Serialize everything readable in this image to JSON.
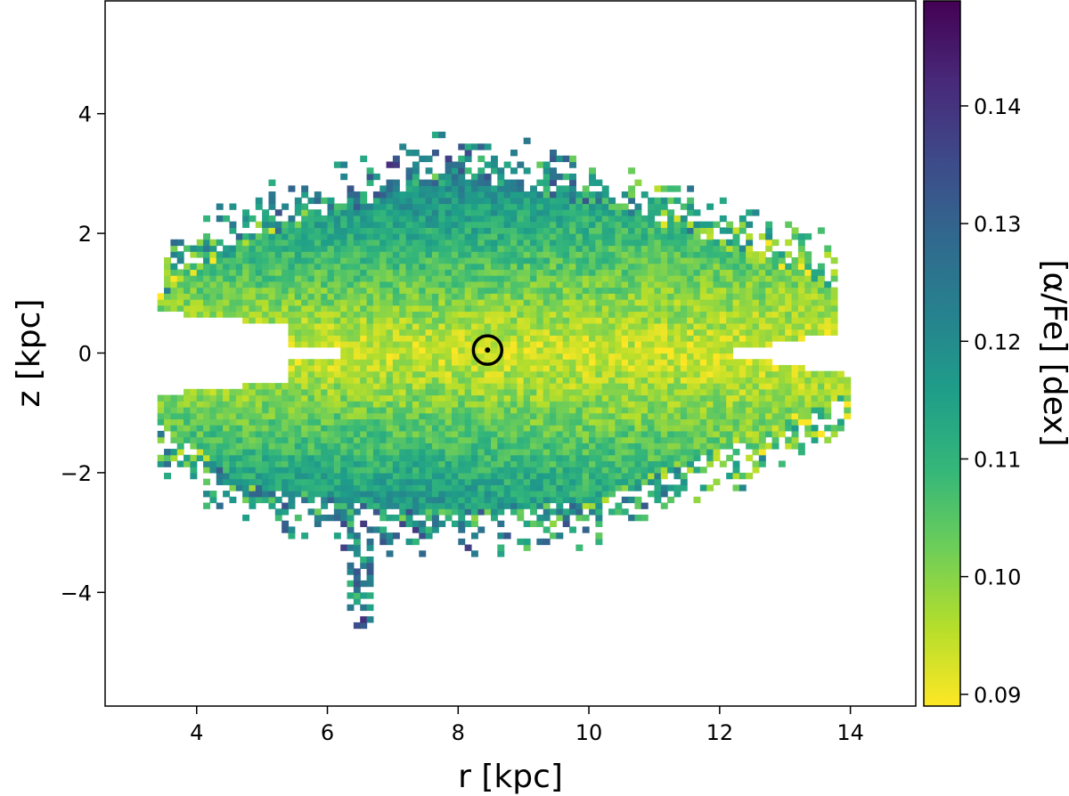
{
  "chart_data": {
    "type": "heatmap",
    "title": "",
    "xlabel": "r [kpc]",
    "ylabel": "z [kpc]",
    "colorbar_label": "[α/Fe] [dex]",
    "xlim": [
      2.6,
      15.0
    ],
    "ylim": [
      -5.9,
      5.9
    ],
    "xticks": [
      4,
      6,
      8,
      10,
      12,
      14
    ],
    "yticks": [
      -4,
      -2,
      0,
      2,
      4
    ],
    "ytick_labels": [
      "−4",
      "−2",
      "0",
      "2",
      "4"
    ],
    "grid": false,
    "bin_size_kpc": [
      0.1,
      0.1
    ],
    "color_range": [
      0.089,
      0.149
    ],
    "colorbar_ticks": [
      0.09,
      0.1,
      0.11,
      0.12,
      0.13,
      0.14
    ],
    "colorbar_tick_labels": [
      "0.09",
      "0.10",
      "0.11",
      "0.12",
      "0.13",
      "0.14"
    ],
    "colormap": "viridis_r",
    "colormap_stops": [
      "#fde725",
      "#b5de2b",
      "#6ece58",
      "#35b779",
      "#1f9e89",
      "#26828e",
      "#31688e",
      "#3e4989",
      "#482878",
      "#440154"
    ],
    "sun_marker": {
      "label": "⊙",
      "r": 8.45,
      "z": 0.05
    },
    "model": {
      "alpha_fe_midplane": 0.093,
      "alpha_fe_slope_per_kpc": 0.008,
      "r_extent": [
        3.4,
        13.8
      ],
      "z_extent": [
        -4.6,
        3.8
      ]
    }
  }
}
